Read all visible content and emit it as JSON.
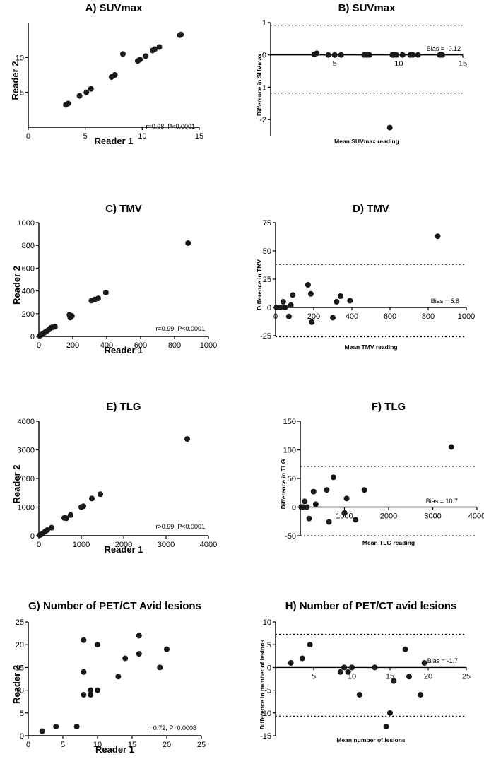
{
  "chart_data": [
    {
      "id": "A",
      "type": "scatter",
      "title": "A) SUVmax",
      "xlabel": "Reader 1",
      "ylabel": "Reader 2",
      "xlim": [
        0,
        15
      ],
      "ylim": [
        0,
        15
      ],
      "xticks": [
        0,
        5,
        10,
        15
      ],
      "yticks": [
        5,
        10
      ],
      "annotation": "r=0.98, P<0.0001",
      "points": [
        [
          3.3,
          3.2
        ],
        [
          3.5,
          3.4
        ],
        [
          4.5,
          4.5
        ],
        [
          5.1,
          5.0
        ],
        [
          5.5,
          5.5
        ],
        [
          7.3,
          7.2
        ],
        [
          7.6,
          7.5
        ],
        [
          8.3,
          10.5
        ],
        [
          9.6,
          9.5
        ],
        [
          9.8,
          9.7
        ],
        [
          10.3,
          10.2
        ],
        [
          10.9,
          11.0
        ],
        [
          11.1,
          11.2
        ],
        [
          11.5,
          11.5
        ],
        [
          13.3,
          13.2
        ],
        [
          13.4,
          13.3
        ]
      ]
    },
    {
      "id": "B",
      "type": "scatter",
      "title": "B) SUVmax",
      "xlabel": "Mean SUVmax reading",
      "ylabel": "Difference in SUVmax",
      "xlim": [
        0,
        15
      ],
      "ylim": [
        -2.5,
        1
      ],
      "xticks": [
        5,
        10,
        15
      ],
      "yticks": [
        -2,
        -1,
        0,
        1
      ],
      "bias": -0.12,
      "loa": [
        0.92,
        -1.18
      ],
      "annotation": "Bias = -0.12",
      "points": [
        [
          3.4,
          0.02
        ],
        [
          3.6,
          0.05
        ],
        [
          4.5,
          0
        ],
        [
          5.0,
          0
        ],
        [
          5.5,
          0
        ],
        [
          7.3,
          0
        ],
        [
          7.5,
          0
        ],
        [
          7.7,
          0
        ],
        [
          9.3,
          -2.25
        ],
        [
          9.5,
          0
        ],
        [
          9.6,
          0
        ],
        [
          9.8,
          0
        ],
        [
          10.3,
          0
        ],
        [
          10.9,
          0
        ],
        [
          11.1,
          0
        ],
        [
          11.5,
          0
        ],
        [
          13.2,
          0
        ],
        [
          13.4,
          0
        ]
      ]
    },
    {
      "id": "C",
      "type": "scatter",
      "title": "C) TMV",
      "xlabel": "Reader 1",
      "ylabel": "Reader 2",
      "xlim": [
        0,
        1000
      ],
      "ylim": [
        0,
        1000
      ],
      "xticks": [
        0,
        200,
        400,
        600,
        800,
        1000
      ],
      "yticks": [
        0,
        200,
        400,
        600,
        800,
        1000
      ],
      "annotation": "r=0.99, P<0.0001",
      "points": [
        [
          5,
          5
        ],
        [
          10,
          10
        ],
        [
          20,
          20
        ],
        [
          30,
          30
        ],
        [
          40,
          40
        ],
        [
          50,
          50
        ],
        [
          60,
          60
        ],
        [
          70,
          75
        ],
        [
          80,
          80
        ],
        [
          95,
          85
        ],
        [
          180,
          190
        ],
        [
          185,
          165
        ],
        [
          195,
          180
        ],
        [
          310,
          315
        ],
        [
          330,
          325
        ],
        [
          350,
          335
        ],
        [
          395,
          385
        ],
        [
          880,
          820
        ]
      ]
    },
    {
      "id": "D",
      "type": "scatter",
      "title": "D) TMV",
      "xlabel": "Mean TMV reading",
      "ylabel": "Difference in TMV",
      "xlim": [
        0,
        1000
      ],
      "ylim": [
        -25,
        75
      ],
      "xticks": [
        0,
        200,
        400,
        600,
        800,
        1000
      ],
      "yticks": [
        -25,
        0,
        25,
        50,
        75
      ],
      "bias": 5.8,
      "loa": [
        38,
        -26
      ],
      "annotation": "Bias = 5.8",
      "points": [
        [
          5,
          0
        ],
        [
          15,
          0
        ],
        [
          25,
          0
        ],
        [
          40,
          5
        ],
        [
          50,
          0
        ],
        [
          70,
          -8
        ],
        [
          80,
          2
        ],
        [
          90,
          11
        ],
        [
          170,
          20
        ],
        [
          185,
          12
        ],
        [
          190,
          -13
        ],
        [
          300,
          -9
        ],
        [
          320,
          5
        ],
        [
          340,
          10
        ],
        [
          390,
          6
        ],
        [
          850,
          63
        ]
      ]
    },
    {
      "id": "E",
      "type": "scatter",
      "title": "E) TLG",
      "xlabel": "Reader 1",
      "ylabel": "Reader 2",
      "xlim": [
        0,
        4000
      ],
      "ylim": [
        0,
        4000
      ],
      "xticks": [
        0,
        1000,
        2000,
        3000,
        4000
      ],
      "yticks": [
        0,
        1000,
        2000,
        3000,
        4000
      ],
      "annotation": "r>0.99, P<0.0001",
      "points": [
        [
          20,
          20
        ],
        [
          50,
          40
        ],
        [
          100,
          90
        ],
        [
          150,
          150
        ],
        [
          200,
          200
        ],
        [
          300,
          280
        ],
        [
          600,
          620
        ],
        [
          650,
          610
        ],
        [
          750,
          720
        ],
        [
          1000,
          1000
        ],
        [
          1050,
          1030
        ],
        [
          1250,
          1300
        ],
        [
          1450,
          1450
        ],
        [
          3500,
          3380
        ]
      ]
    },
    {
      "id": "F",
      "type": "scatter",
      "title": "F) TLG",
      "xlabel": "Mean TLG reading",
      "ylabel": "Difference in TLG",
      "xlim": [
        0,
        4000
      ],
      "ylim": [
        -50,
        150
      ],
      "xticks": [
        1000,
        2000,
        3000,
        4000
      ],
      "yticks": [
        -50,
        0,
        50,
        100,
        150
      ],
      "bias": 10.7,
      "loa": [
        71,
        -50
      ],
      "annotation": "Bias = 10.7",
      "points": [
        [
          20,
          0
        ],
        [
          60,
          0
        ],
        [
          100,
          10
        ],
        [
          150,
          0
        ],
        [
          200,
          -20
        ],
        [
          300,
          27
        ],
        [
          350,
          5
        ],
        [
          600,
          30
        ],
        [
          650,
          -26
        ],
        [
          750,
          52
        ],
        [
          1000,
          -10
        ],
        [
          1050,
          15
        ],
        [
          1250,
          -22
        ],
        [
          1450,
          30
        ],
        [
          3420,
          105
        ]
      ]
    },
    {
      "id": "G",
      "type": "scatter",
      "title": "G) Number of PET/CT Avid lesions",
      "xlabel": "Reader 1",
      "ylabel": "Reader 2",
      "xlim": [
        0,
        25
      ],
      "ylim": [
        0,
        25
      ],
      "xticks": [
        0,
        5,
        10,
        15,
        20,
        25
      ],
      "yticks": [
        0,
        5,
        10,
        15,
        20,
        25
      ],
      "annotation": "r=0.72, P=0.0008",
      "points": [
        [
          2,
          1
        ],
        [
          4,
          2
        ],
        [
          7,
          2
        ],
        [
          8,
          21
        ],
        [
          8,
          14
        ],
        [
          8,
          9
        ],
        [
          9,
          9
        ],
        [
          9,
          10
        ],
        [
          10,
          20
        ],
        [
          10,
          10
        ],
        [
          13,
          13
        ],
        [
          14,
          17
        ],
        [
          16,
          22
        ],
        [
          16,
          18
        ],
        [
          19,
          15
        ],
        [
          20,
          19
        ]
      ]
    },
    {
      "id": "H",
      "type": "scatter",
      "title": "H) Number of PET/CT  avid lesions",
      "xlabel": "Mean number of lesions",
      "ylabel": "Difference in number of lesions",
      "xlim": [
        0,
        25
      ],
      "ylim": [
        -15,
        10
      ],
      "xticks": [
        5,
        10,
        15,
        20,
        25
      ],
      "yticks": [
        -15,
        -10,
        -5,
        0,
        5,
        10
      ],
      "bias": -1.7,
      "loa": [
        7.3,
        -10.7
      ],
      "annotation": "Bias = -1.7",
      "points": [
        [
          2,
          1
        ],
        [
          3.5,
          2
        ],
        [
          4.5,
          5
        ],
        [
          8.5,
          -1
        ],
        [
          9,
          0
        ],
        [
          9.5,
          -1
        ],
        [
          10,
          0
        ],
        [
          11,
          -6
        ],
        [
          13,
          0
        ],
        [
          14.5,
          -13
        ],
        [
          15,
          -10
        ],
        [
          15.5,
          -3
        ],
        [
          17,
          4
        ],
        [
          17.5,
          -2
        ],
        [
          19,
          -6
        ],
        [
          19.5,
          1
        ]
      ]
    }
  ]
}
